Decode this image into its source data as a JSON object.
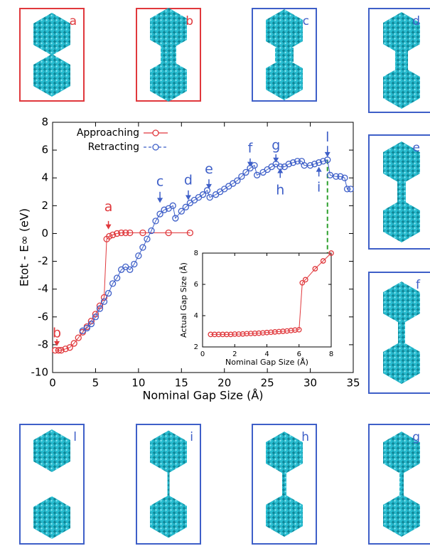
{
  "chart_data": [
    {
      "type": "line",
      "xlabel": "Nominal Gap Size (Å)",
      "ylabel": "Etot - E∞ (eV)",
      "xlim": [
        0,
        35
      ],
      "xticks": [
        0,
        5,
        10,
        15,
        20,
        25,
        30,
        35
      ],
      "ylim": [
        -10,
        8
      ],
      "yticks": [
        -10,
        -8,
        -6,
        -4,
        -2,
        0,
        2,
        4,
        6,
        8
      ],
      "legend": "upper left",
      "series": [
        {
          "name": "Approaching",
          "color": "#e0383c",
          "x": [
            0.3,
            0.7,
            1,
            1.5,
            2,
            2.5,
            3,
            3.5,
            4,
            4.5,
            5,
            5.5,
            6,
            6.3,
            6.6,
            7,
            7.5,
            8,
            8.5,
            9,
            10.5,
            13.5,
            16
          ],
          "values": [
            -8.4,
            -8.4,
            -8.4,
            -8.3,
            -8.2,
            -7.9,
            -7.5,
            -7.1,
            -6.7,
            -6.3,
            -5.8,
            -5.2,
            -4.6,
            -0.4,
            -0.2,
            -0.1,
            0,
            0.05,
            0.05,
            0.05,
            0.05,
            0.05,
            0.05
          ]
        },
        {
          "name": "Retracting",
          "color": "#3e5fc8",
          "x": [
            3.5,
            4,
            4.5,
            5,
            5.5,
            6,
            6.5,
            7,
            7.5,
            8,
            8.5,
            9,
            9.5,
            10,
            10.5,
            11,
            11.5,
            12,
            12.5,
            13,
            13.5,
            14,
            14.3,
            15,
            15.5,
            16,
            16.5,
            17,
            17.5,
            18,
            18.3,
            19,
            19.5,
            20,
            20.5,
            21,
            21.5,
            22,
            22.5,
            23,
            23.5,
            23.8,
            24.5,
            25,
            25.5,
            26,
            26.5,
            27,
            27.5,
            28,
            28.5,
            29,
            29.3,
            30,
            30.5,
            31,
            31.5,
            32,
            32.3,
            33,
            33.5,
            34,
            34.3,
            34.7
          ],
          "values": [
            -7,
            -6.8,
            -6.5,
            -6,
            -5.4,
            -4.9,
            -4.3,
            -3.6,
            -3.2,
            -2.6,
            -2.4,
            -2.6,
            -2.2,
            -1.6,
            -1,
            -0.4,
            0.2,
            0.9,
            1.4,
            1.7,
            1.8,
            2,
            1.1,
            1.6,
            1.9,
            2.2,
            2.4,
            2.6,
            2.8,
            3.1,
            2.6,
            2.8,
            3,
            3.2,
            3.4,
            3.6,
            3.8,
            4.1,
            4.4,
            4.7,
            4.9,
            4.2,
            4.4,
            4.6,
            4.8,
            5,
            4.8,
            4.8,
            5,
            5.1,
            5.2,
            5.2,
            4.9,
            4.9,
            5,
            5.1,
            5.2,
            5.3,
            4.2,
            4.1,
            4.1,
            4,
            3.2,
            3.2
          ]
        }
      ],
      "annotations": [
        {
          "text": "a",
          "x": 6.5,
          "y": 1.9,
          "color": "#e0383c",
          "arrow": [
            0.9,
            0.3
          ]
        },
        {
          "text": "b",
          "x": 0.5,
          "y": -7.2,
          "color": "#e0383c",
          "arrow": [
            -7.6,
            -8.1
          ]
        },
        {
          "text": "c",
          "x": 12.5,
          "y": 3.7,
          "color": "#3e5fc8",
          "arrow": [
            3,
            2.2
          ]
        },
        {
          "text": "d",
          "x": 15.8,
          "y": 3.8,
          "color": "#3e5fc8",
          "arrow": [
            3.1,
            2.4
          ]
        },
        {
          "text": "e",
          "x": 18.2,
          "y": 4.6,
          "color": "#3e5fc8",
          "arrow": [
            3.9,
            3.2
          ]
        },
        {
          "text": "f",
          "x": 23,
          "y": 6.1,
          "color": "#3e5fc8",
          "arrow": [
            5.4,
            4.8
          ]
        },
        {
          "text": "g",
          "x": 26,
          "y": 6.3,
          "color": "#3e5fc8",
          "arrow": [
            5.7,
            5.1
          ]
        },
        {
          "text": "h",
          "x": 26.5,
          "y": 3.1,
          "color": "#3e5fc8",
          "arrow": [
            4,
            4.7
          ]
        },
        {
          "text": "i",
          "x": 31,
          "y": 3.3,
          "color": "#3e5fc8",
          "arrow": [
            4.1,
            4.8
          ]
        },
        {
          "text": "l",
          "x": 32,
          "y": 6.9,
          "color": "#3e5fc8",
          "arrow": [
            6.3,
            5.5
          ]
        }
      ],
      "vline": {
        "x": 32,
        "from": 5.3,
        "to": -1.8,
        "color": "#2ca02c"
      }
    },
    {
      "type": "line",
      "xlabel": "Nominal Gap Size (Å)",
      "ylabel": "Actual Gap Size (Å)",
      "xlim": [
        0,
        8
      ],
      "xticks": [
        0,
        2,
        4,
        6,
        8
      ],
      "ylim": [
        2,
        8
      ],
      "yticks": [
        2,
        4,
        6,
        8
      ],
      "series": [
        {
          "color": "#e0383c",
          "x": [
            0.5,
            0.75,
            1,
            1.25,
            1.5,
            1.75,
            2,
            2.25,
            2.5,
            2.75,
            3,
            3.25,
            3.5,
            3.75,
            4,
            4.25,
            4.5,
            4.75,
            5,
            5.25,
            5.5,
            5.75,
            6,
            6.2,
            6.4,
            7,
            7.5,
            8
          ],
          "values": [
            2.8,
            2.8,
            2.8,
            2.8,
            2.8,
            2.8,
            2.82,
            2.82,
            2.83,
            2.85,
            2.86,
            2.87,
            2.88,
            2.9,
            2.92,
            2.94,
            2.96,
            2.98,
            3,
            3.02,
            3.05,
            3.08,
            3.1,
            6.1,
            6.3,
            7,
            7.5,
            8
          ]
        }
      ]
    }
  ],
  "panels": [
    {
      "label": "a",
      "color": "#e0383c"
    },
    {
      "label": "b",
      "color": "#e0383c"
    },
    {
      "label": "c",
      "color": "#3e5fc8"
    },
    {
      "label": "d",
      "color": "#3e5fc8"
    },
    {
      "label": "e",
      "color": "#3e5fc8"
    },
    {
      "label": "f",
      "color": "#3e5fc8"
    },
    {
      "label": "g",
      "color": "#3e5fc8"
    },
    {
      "label": "h",
      "color": "#3e5fc8"
    },
    {
      "label": "i",
      "color": "#3e5fc8"
    },
    {
      "label": "l",
      "color": "#3e5fc8"
    }
  ]
}
